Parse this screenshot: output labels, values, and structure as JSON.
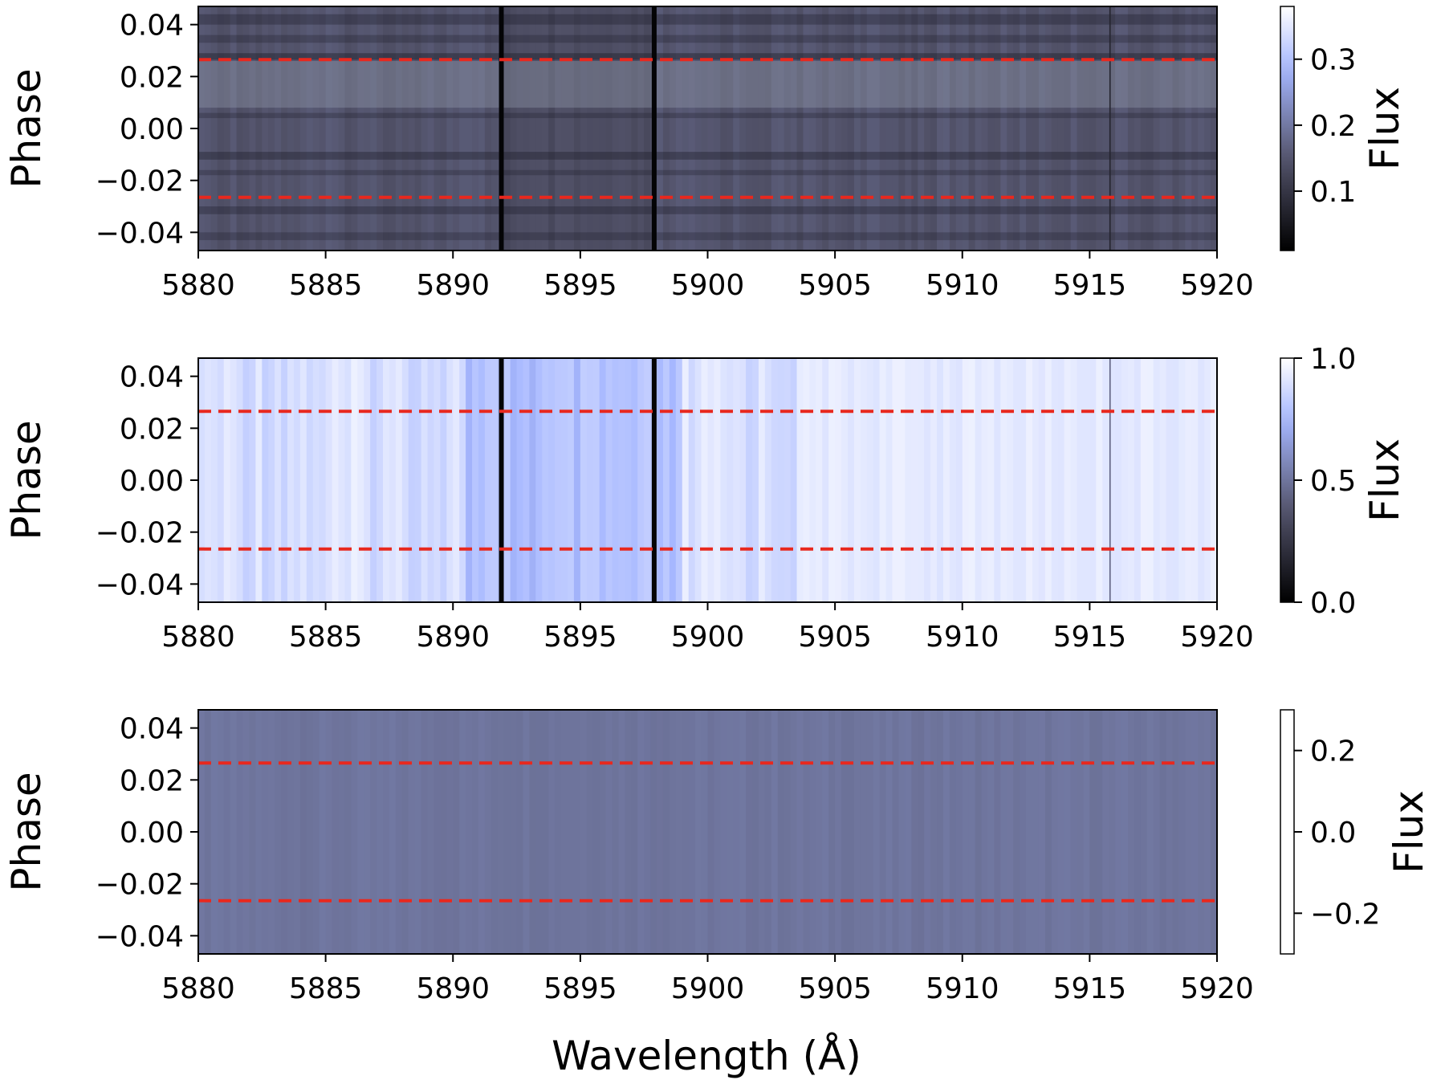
{
  "figure": {
    "xlabel": "Wavelength (Å)"
  },
  "colors": {
    "dashed_line": "#e8281e",
    "axis": "#000000"
  },
  "chart_data": [
    {
      "type": "heatmap",
      "panel": "top",
      "x_range": [
        5880,
        5920
      ],
      "y_range": [
        -0.047,
        0.047
      ],
      "xticks": [
        "5880",
        "5885",
        "5890",
        "5895",
        "5900",
        "5905",
        "5910",
        "5915",
        "5920"
      ],
      "yticks": [
        "0.04",
        "0.02",
        "0.00",
        "−0.02",
        "−0.04"
      ],
      "ylabel": "Phase",
      "colorbar": {
        "label": "Flux",
        "range": [
          0.01,
          0.38
        ],
        "ticks": [
          "0.3",
          "0.2",
          "0.1"
        ],
        "colormap": "bone"
      },
      "dashed_lines_phase": [
        0.0265,
        -0.0265
      ],
      "absorption_lines": [
        5891.9,
        5897.9,
        5915.8
      ],
      "base_flux": 0.16
    },
    {
      "type": "heatmap",
      "panel": "middle",
      "x_range": [
        5880,
        5920
      ],
      "y_range": [
        -0.047,
        0.047
      ],
      "xticks": [
        "5880",
        "5885",
        "5890",
        "5895",
        "5900",
        "5905",
        "5910",
        "5915",
        "5920"
      ],
      "yticks": [
        "0.04",
        "0.02",
        "0.00",
        "−0.02",
        "−0.04"
      ],
      "ylabel": "Phase",
      "colorbar": {
        "label": "Flux",
        "range": [
          0.0,
          1.0
        ],
        "ticks": [
          "1.0",
          "0.5",
          "0.0"
        ],
        "colormap": "bone"
      },
      "dashed_lines_phase": [
        0.0265,
        -0.0265
      ],
      "absorption_lines": [
        5891.9,
        5897.9,
        5915.8
      ],
      "base_flux": 0.95
    },
    {
      "type": "heatmap",
      "panel": "bottom",
      "x_range": [
        5880,
        5920
      ],
      "y_range": [
        -0.047,
        0.047
      ],
      "xticks": [
        "5880",
        "5885",
        "5890",
        "5895",
        "5900",
        "5905",
        "5910",
        "5915",
        "5920"
      ],
      "yticks": [
        "0.04",
        "0.02",
        "0.00",
        "−0.02",
        "−0.04"
      ],
      "ylabel": "Phase",
      "colorbar": {
        "label": "Flux",
        "range": [
          -0.3,
          0.3
        ],
        "ticks": [
          "0.2",
          "0.0",
          "−0.2"
        ],
        "colormap": "bone"
      },
      "dashed_lines_phase": [
        0.0265,
        -0.0265
      ],
      "absorption_lines": [],
      "base_flux": 0.0
    }
  ]
}
